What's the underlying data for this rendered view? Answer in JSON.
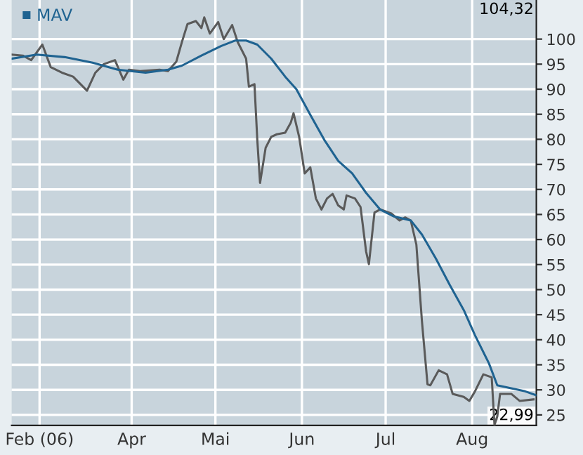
{
  "chart_data": {
    "type": "line",
    "xlim": [
      "2006-02-17",
      "2006-08-24"
    ],
    "xticks": [
      {
        "value": "2006-02-27",
        "label": "Feb (06)"
      },
      {
        "value": "2006-04-01",
        "label": "Apr"
      },
      {
        "value": "2006-05-01",
        "label": "Mai"
      },
      {
        "value": "2006-06-01",
        "label": "Jun"
      },
      {
        "value": "2006-07-01",
        "label": "Jul"
      },
      {
        "value": "2006-08-01",
        "label": "Aug"
      }
    ],
    "ylim": [
      22.9,
      107.8
    ],
    "yticks": [
      25,
      30,
      35,
      40,
      45,
      50,
      55,
      60,
      65,
      70,
      75,
      80,
      85,
      90,
      95,
      100
    ],
    "grid": true,
    "legend": "top left",
    "marker": "none",
    "line_style": "solid",
    "annotations": [
      "104,32",
      "22,99"
    ],
    "series": [
      {
        "color": "#5a5a5a",
        "x": [
          "2006-02-17",
          "2006-02-21",
          "2006-02-24",
          "2006-02-28",
          "2006-03-03",
          "2006-03-07",
          "2006-03-11",
          "2006-03-16",
          "2006-03-19",
          "2006-03-22",
          "2006-03-26",
          "2006-03-29",
          "2006-03-31",
          "2006-04-04",
          "2006-04-11",
          "2006-04-14",
          "2006-04-17",
          "2006-04-19",
          "2006-04-21",
          "2006-04-24",
          "2006-04-26",
          "2006-04-27",
          "2006-04-29",
          "2006-05-02",
          "2006-05-04",
          "2006-05-07",
          "2006-05-09",
          "2006-05-12",
          "2006-05-13",
          "2006-05-15",
          "2006-05-16",
          "2006-05-17",
          "2006-05-19",
          "2006-05-21",
          "2006-05-23",
          "2006-05-26",
          "2006-05-28",
          "2006-05-29",
          "2006-05-31",
          "2006-06-02",
          "2006-06-04",
          "2006-06-06",
          "2006-06-08",
          "2006-06-10",
          "2006-06-12",
          "2006-06-14",
          "2006-06-16",
          "2006-06-17",
          "2006-06-20",
          "2006-06-22",
          "2006-06-24",
          "2006-06-25",
          "2006-06-27",
          "2006-06-29",
          "2006-07-03",
          "2006-07-06",
          "2006-07-08",
          "2006-07-10",
          "2006-07-12",
          "2006-07-14",
          "2006-07-16",
          "2006-07-17",
          "2006-07-20",
          "2006-07-23",
          "2006-07-25",
          "2006-07-29",
          "2006-07-31",
          "2006-08-02",
          "2006-08-05",
          "2006-08-08",
          "2006-08-09",
          "2006-08-10",
          "2006-08-11",
          "2006-08-15",
          "2006-08-18",
          "2006-08-23"
        ],
        "values": [
          96.9,
          96.7,
          95.8,
          98.9,
          94.4,
          93.3,
          92.5,
          89.7,
          93.3,
          95.0,
          95.8,
          91.9,
          93.9,
          93.6,
          93.9,
          93.6,
          95.5,
          99.4,
          103.0,
          103.6,
          102.2,
          104.32,
          101.1,
          103.4,
          100.0,
          102.8,
          99.4,
          96.1,
          90.5,
          91.0,
          80.0,
          71.3,
          78.3,
          80.5,
          81.0,
          81.3,
          83.3,
          85.2,
          80.5,
          73.2,
          74.4,
          68.2,
          66.0,
          68.2,
          69.1,
          66.8,
          66.0,
          68.8,
          68.2,
          66.5,
          57.6,
          55.1,
          65.4,
          66.0,
          65.2,
          63.8,
          64.4,
          63.8,
          59.0,
          43.7,
          31.1,
          30.9,
          33.9,
          33.1,
          29.2,
          28.6,
          27.8,
          29.7,
          33.1,
          32.5,
          22.99,
          24.7,
          29.2,
          29.2,
          27.8,
          28.1
        ]
      },
      {
        "name": "MAV",
        "color": "#1f6391",
        "x": [
          "2006-02-17",
          "2006-02-26",
          "2006-03-08",
          "2006-03-18",
          "2006-03-27",
          "2006-04-06",
          "2006-04-14",
          "2006-04-19",
          "2006-04-26",
          "2006-05-03",
          "2006-05-08",
          "2006-05-12",
          "2006-05-16",
          "2006-05-21",
          "2006-05-26",
          "2006-05-30",
          "2006-06-04",
          "2006-06-09",
          "2006-06-14",
          "2006-06-19",
          "2006-06-24",
          "2006-06-29",
          "2006-07-04",
          "2006-07-10",
          "2006-07-14",
          "2006-07-19",
          "2006-07-24",
          "2006-07-29",
          "2006-08-02",
          "2006-08-07",
          "2006-08-10",
          "2006-08-15",
          "2006-08-20",
          "2006-08-24"
        ],
        "values": [
          96.1,
          96.9,
          96.4,
          95.3,
          93.9,
          93.3,
          93.9,
          94.7,
          96.7,
          98.6,
          99.7,
          99.7,
          98.9,
          96.1,
          92.5,
          90.0,
          84.9,
          79.9,
          75.7,
          73.2,
          69.3,
          66.0,
          64.6,
          63.8,
          61.0,
          56.2,
          50.9,
          45.9,
          40.9,
          35.3,
          30.9,
          30.3,
          29.7,
          28.9
        ]
      }
    ]
  }
}
